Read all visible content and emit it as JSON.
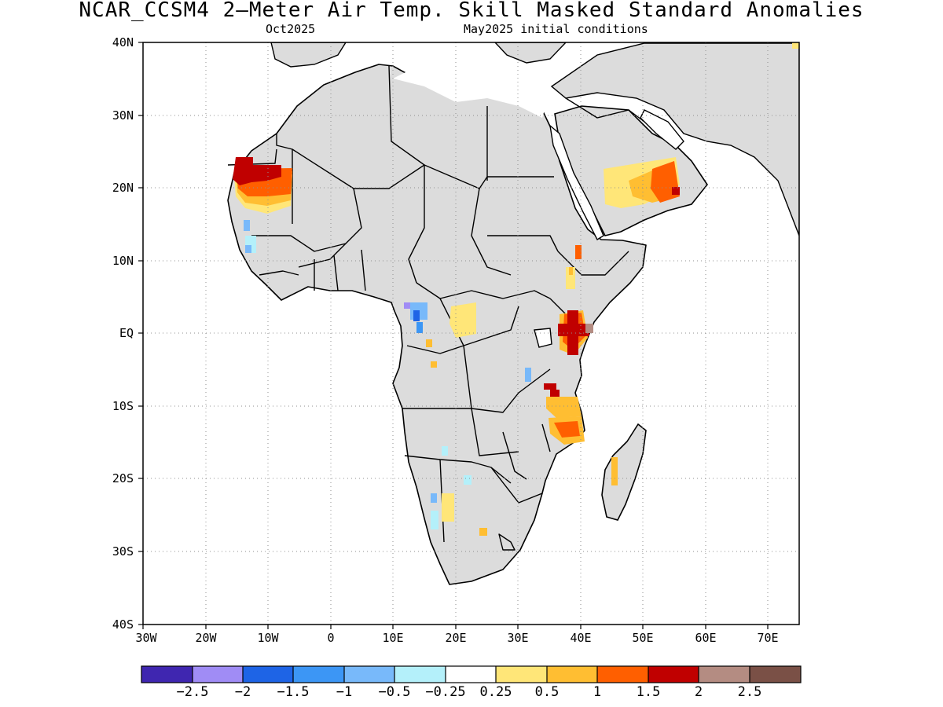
{
  "title": "NCAR_CCSM4 2—Meter Air Temp. Skill Masked Standard Anomalies",
  "subtitle_left": "Oct2025",
  "subtitle_right": "May2025 initial conditions",
  "map": {
    "region": "Africa and Arabian Peninsula",
    "lat_range": [
      "40S",
      "40N"
    ],
    "lon_range": [
      "30W",
      "75E"
    ],
    "y_labels": [
      "40N",
      "30N",
      "20N",
      "10N",
      "EQ",
      "10S",
      "20S",
      "30S",
      "40S"
    ],
    "x_labels": [
      "30W",
      "20W",
      "10W",
      "0",
      "10E",
      "20E",
      "30E",
      "40E",
      "50E",
      "60E",
      "70E"
    ],
    "grid": true,
    "land_mask_color": "#dcdcdc",
    "warm_anomaly_regions": [
      "Western Sahara / Mauritania",
      "Yemen / Oman",
      "Kenya",
      "Tanzania / Mozambique",
      "Central Africa",
      "Madagascar",
      "Southern Africa"
    ],
    "cool_anomaly_regions": [
      "Senegal / Guinea",
      "Gabon / Congo",
      "Namibia"
    ]
  },
  "colorbar": {
    "colors": [
      "#3f26b0",
      "#a08cf5",
      "#1e64e6",
      "#3c96f5",
      "#78b9fa",
      "#b4f0fa",
      "#ffffff",
      "#ffe678",
      "#ffbe32",
      "#ff5f00",
      "#c00000",
      "#b48c82",
      "#7a5046"
    ],
    "labels": [
      "−2.5",
      "−2",
      "−1.5",
      "−1",
      "−0.5",
      "−0.25",
      "0.25",
      "0.5",
      "1",
      "1.5",
      "2",
      "2.5"
    ]
  }
}
